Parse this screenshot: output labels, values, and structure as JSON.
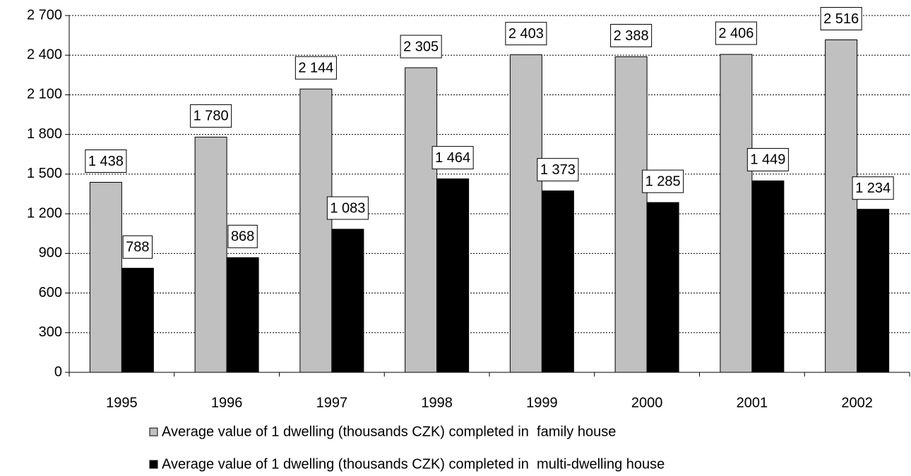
{
  "chart_data": {
    "type": "bar",
    "categories": [
      "1995",
      "1996",
      "1997",
      "1998",
      "1999",
      "2000",
      "2001",
      "2002"
    ],
    "series": [
      {
        "name": "Average value of 1 dwelling (thousands CZK) completed in  family house",
        "color": "#c0c0c0",
        "values": [
          1438,
          1780,
          2144,
          2305,
          2403,
          2388,
          2406,
          2516
        ],
        "value_labels": [
          "1 438",
          "1 780",
          "2 144",
          "2 305",
          "2 403",
          "2 388",
          "2 406",
          "2 516"
        ]
      },
      {
        "name": "Average value of 1 dwelling (thousands CZK) completed in  multi-dwelling house",
        "color": "#000000",
        "values": [
          788,
          868,
          1083,
          1464,
          1373,
          1285,
          1449,
          1234
        ],
        "value_labels": [
          "788",
          "868",
          "1 083",
          "1 464",
          "1 373",
          "1 285",
          "1 449",
          "1 234"
        ]
      }
    ],
    "ylim": [
      0,
      2700
    ],
    "yticks": [
      0,
      300,
      600,
      900,
      {
        "value": 1200,
        "label": "1 200"
      },
      {
        "value": 1500,
        "label": "1 500"
      },
      {
        "value": 1800,
        "label": "1 800"
      },
      {
        "value": 2100,
        "label": "2 100"
      },
      {
        "value": 2400,
        "label": "2 400"
      },
      {
        "value": 2700,
        "label": "2 700"
      }
    ],
    "grid": true
  }
}
